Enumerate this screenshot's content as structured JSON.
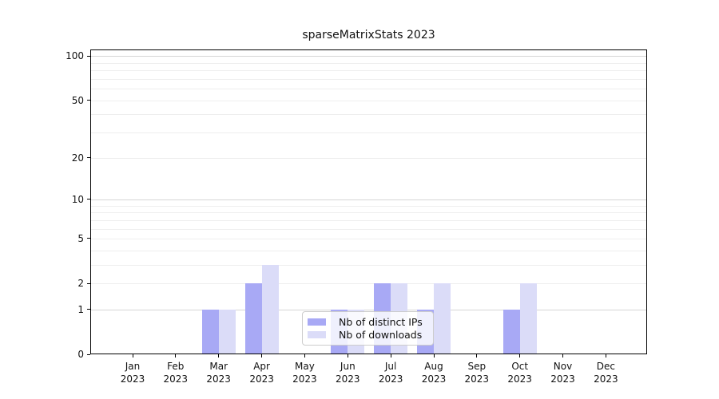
{
  "title": "sparseMatrixStats 2023",
  "chart_data": {
    "type": "bar",
    "title": "sparseMatrixStats 2023",
    "categories": [
      "Jan 2023",
      "Feb 2023",
      "Mar 2023",
      "Apr 2023",
      "May 2023",
      "Jun 2023",
      "Jul 2023",
      "Aug 2023",
      "Sep 2023",
      "Oct 2023",
      "Nov 2023",
      "Dec 2023"
    ],
    "categories_month": [
      "Jan",
      "Feb",
      "Mar",
      "Apr",
      "May",
      "Jun",
      "Jul",
      "Aug",
      "Sep",
      "Oct",
      "Nov",
      "Dec"
    ],
    "year": "2023",
    "series": [
      {
        "name": "Nb of distinct IPs",
        "color": "#a8a9f5",
        "values": [
          0,
          0,
          1,
          2,
          0,
          1,
          2,
          1,
          0,
          1,
          0,
          0
        ]
      },
      {
        "name": "Nb of downloads",
        "color": "#dbdcf8",
        "values": [
          0,
          0,
          1,
          3,
          0,
          1,
          2,
          2,
          0,
          2,
          0,
          0
        ]
      }
    ],
    "xlabel": "",
    "ylabel": "",
    "yscale": "log1p",
    "ylim": [
      0,
      111
    ],
    "ytick_labels": [
      "0",
      "1",
      "2",
      "5",
      "10",
      "20",
      "50",
      "100"
    ],
    "ytick_values": [
      0,
      1,
      2,
      5,
      10,
      20,
      50,
      100
    ],
    "grid_major_values": [
      1,
      10,
      100
    ],
    "grid_minor_values": [
      2,
      3,
      4,
      5,
      6,
      7,
      8,
      9,
      20,
      30,
      40,
      50,
      60,
      70,
      80,
      90
    ],
    "grid": "both",
    "legend_position": "lower center",
    "colors": {
      "distinct_ips_bar": "#a8a9f5",
      "downloads_bar": "#dbdcf8",
      "major_grid": "#d5d5d5",
      "minor_grid": "#eeeeee",
      "spine": "#000000",
      "text": "#111111",
      "legend_border": "#cccccc"
    }
  }
}
